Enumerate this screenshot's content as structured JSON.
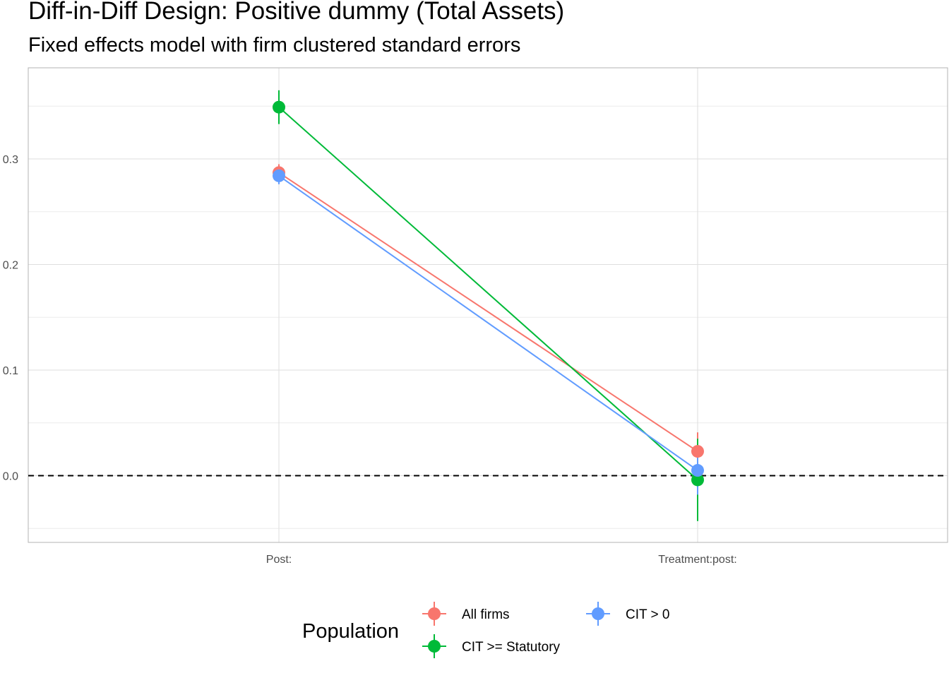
{
  "chart_data": {
    "type": "line",
    "title": "Diff-in-Diff Design: Positive dummy (Total Assets)",
    "subtitle": "Fixed effects model with firm clustered standard errors",
    "xlabel": "",
    "ylabel": "",
    "categories": [
      "Post:",
      "Treatment:post:"
    ],
    "y_ticks": [
      0.0,
      0.1,
      0.2,
      0.3
    ],
    "ylim": [
      -0.063,
      0.385
    ],
    "reference_line": {
      "y": 0,
      "style": "dashed"
    },
    "grid": true,
    "legend": {
      "title": "Population",
      "position": "bottom"
    },
    "series": [
      {
        "name": "All firms",
        "color": "#F8766D",
        "values": [
          0.287,
          0.023
        ],
        "ci_low": [
          0.279,
          0.005
        ],
        "ci_high": [
          0.295,
          0.041
        ]
      },
      {
        "name": "CIT >= Statutory",
        "color": "#00BA38",
        "values": [
          0.349,
          -0.004
        ],
        "ci_low": [
          0.333,
          -0.043
        ],
        "ci_high": [
          0.365,
          0.035
        ]
      },
      {
        "name": "CIT > 0",
        "color": "#619CFF",
        "values": [
          0.284,
          0.005
        ],
        "ci_low": [
          0.276,
          -0.018
        ],
        "ci_high": [
          0.292,
          0.028
        ]
      }
    ]
  }
}
